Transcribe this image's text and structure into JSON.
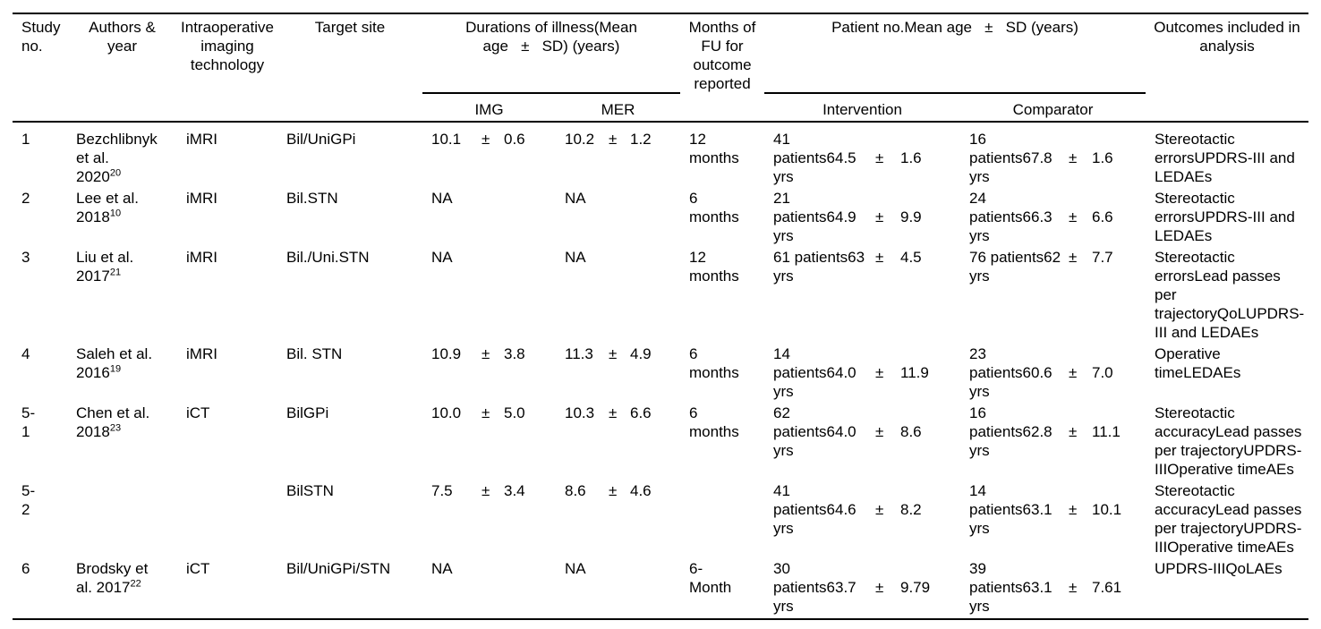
{
  "colors": {
    "background": "#ffffff",
    "text": "#000000",
    "rule": "#000000"
  },
  "table": {
    "header": {
      "study_no": "Study no.",
      "authors_year": "Authors & year",
      "imaging_tech": "Intraoperative imaging technology",
      "target_site": "Target site",
      "durations_line1": "Durations of illness(Mean",
      "durations_line2": "age   ±   SD) (years)",
      "months_fu": "Months of FU for outcome reported",
      "patient_group": "Patient no.Mean age   ±   SD (years)",
      "outcomes": "Outcomes included in analysis",
      "sub_img": "IMG",
      "sub_mer": "MER",
      "sub_intervention": "Intervention",
      "sub_comparator": "Comparator"
    },
    "rows": [
      {
        "no_lines": [
          "1"
        ],
        "authors_lines": [
          "Bezchlibnyk",
          "et al.",
          "2020"
        ],
        "authors_sup": "20",
        "tech": "iMRI",
        "target": "Bil/UniGPi",
        "img": [
          {
            "t": "10.1",
            "pm": "±",
            "sd": "0.6"
          }
        ],
        "mer": [
          {
            "t": "10.2",
            "pm": "±",
            "sd": "1.2"
          }
        ],
        "fu_lines": [
          "12",
          "months"
        ],
        "intervention": [
          {
            "t": "41"
          },
          {
            "t": "patients64.5",
            "pm": "±",
            "sd": "1.6"
          },
          {
            "t": "yrs"
          }
        ],
        "comparator": [
          {
            "t": "16"
          },
          {
            "t": "patients67.8",
            "pm": "±",
            "sd": "1.6"
          },
          {
            "t": "yrs"
          }
        ],
        "outcomes_lines": [
          "Stereotactic",
          "errorsUPDRS-III and",
          "LEDAEs"
        ]
      },
      {
        "no_lines": [
          "2"
        ],
        "authors_lines": [
          "Lee et al.",
          "2018"
        ],
        "authors_sup": "10",
        "tech": "iMRI",
        "target": "Bil.STN",
        "img": [
          {
            "t": "NA"
          }
        ],
        "mer": [
          {
            "t": "NA"
          }
        ],
        "fu_lines": [
          "6",
          "months"
        ],
        "intervention": [
          {
            "t": "21"
          },
          {
            "t": "patients64.9",
            "pm": "±",
            "sd": "9.9"
          },
          {
            "t": "yrs"
          }
        ],
        "comparator": [
          {
            "t": "24"
          },
          {
            "t": "patients66.3",
            "pm": "±",
            "sd": "6.6"
          },
          {
            "t": "yrs"
          }
        ],
        "outcomes_lines": [
          "Stereotactic",
          "errorsUPDRS-III and",
          "LEDAEs"
        ]
      },
      {
        "no_lines": [
          "3"
        ],
        "authors_lines": [
          "Liu et al.",
          "2017"
        ],
        "authors_sup": "21",
        "tech": "iMRI",
        "target": "Bil./Uni.STN",
        "img": [
          {
            "t": "NA"
          }
        ],
        "mer": [
          {
            "t": "NA"
          }
        ],
        "fu_lines": [
          "12",
          "months"
        ],
        "intervention": [
          {
            "t": "61 patients63",
            "pm": "±",
            "sd": "4.5"
          },
          {
            "t": "yrs"
          }
        ],
        "comparator": [
          {
            "t": "76 patients62",
            "pm": "±",
            "sd": "7.7"
          },
          {
            "t": "yrs"
          }
        ],
        "outcomes_lines": [
          "Stereotactic",
          "errorsLead passes",
          "per",
          "trajectoryQoLUPDRS-",
          "III and LEDAEs"
        ]
      },
      {
        "no_lines": [
          "4"
        ],
        "authors_lines": [
          "Saleh et al.",
          "2016"
        ],
        "authors_sup": "19",
        "tech": "iMRI",
        "target": "Bil. STN",
        "img": [
          {
            "t": "10.9",
            "pm": "±",
            "sd": "3.8"
          }
        ],
        "mer": [
          {
            "t": "11.3",
            "pm": "±",
            "sd": "4.9"
          }
        ],
        "fu_lines": [
          "6",
          "months"
        ],
        "intervention": [
          {
            "t": "14"
          },
          {
            "t": "patients64.0",
            "pm": "±",
            "sd": "11.9"
          },
          {
            "t": "yrs"
          }
        ],
        "comparator": [
          {
            "t": "23"
          },
          {
            "t": "patients60.6",
            "pm": "±",
            "sd": "7.0"
          },
          {
            "t": "yrs"
          }
        ],
        "outcomes_lines": [
          "Operative",
          "timeLEDAEs"
        ]
      },
      {
        "no_lines": [
          "5-",
          "1"
        ],
        "authors_lines": [
          "Chen et al.",
          "2018"
        ],
        "authors_sup": "23",
        "tech": "iCT",
        "target": "BilGPi",
        "img": [
          {
            "t": "10.0",
            "pm": "±",
            "sd": "5.0"
          }
        ],
        "mer": [
          {
            "t": "10.3",
            "pm": "±",
            "sd": "6.6"
          }
        ],
        "fu_lines": [
          "6",
          "months"
        ],
        "intervention": [
          {
            "t": "62"
          },
          {
            "t": "patients64.0",
            "pm": "±",
            "sd": "8.6"
          },
          {
            "t": "yrs"
          }
        ],
        "comparator": [
          {
            "t": "16"
          },
          {
            "t": "patients62.8",
            "pm": "±",
            "sd": "11.1"
          },
          {
            "t": "yrs"
          }
        ],
        "outcomes_lines": [
          "Stereotactic",
          "accuracyLead passes",
          "per trajectoryUPDRS-",
          "IIIOperative timeAEs"
        ]
      },
      {
        "no_lines": [
          "5-",
          "2"
        ],
        "authors_lines": [],
        "authors_sup": "",
        "tech": "",
        "target": "BilSTN",
        "img": [
          {
            "t": "7.5",
            "pm": "±",
            "sd": "3.4"
          }
        ],
        "mer": [
          {
            "t": "8.6",
            "pm": "±",
            "sd": "4.6"
          }
        ],
        "fu_lines": [],
        "intervention": [
          {
            "t": "41"
          },
          {
            "t": "patients64.6",
            "pm": "±",
            "sd": "8.2"
          },
          {
            "t": "yrs"
          }
        ],
        "comparator": [
          {
            "t": "14"
          },
          {
            "t": "patients63.1",
            "pm": "±",
            "sd": "10.1"
          },
          {
            "t": "yrs"
          }
        ],
        "outcomes_lines": [
          "Stereotactic",
          "accuracyLead passes",
          "per trajectoryUPDRS-",
          "IIIOperative timeAEs"
        ]
      },
      {
        "no_lines": [
          "6"
        ],
        "authors_lines": [
          "Brodsky et",
          "al. 2017"
        ],
        "authors_sup": "22",
        "tech": "iCT",
        "target": "Bil/UniGPi/STN",
        "img": [
          {
            "t": "NA"
          }
        ],
        "mer": [
          {
            "t": "NA"
          }
        ],
        "fu_lines": [
          "6-",
          "Month"
        ],
        "intervention": [
          {
            "t": "30"
          },
          {
            "t": "patients63.7",
            "pm": "±",
            "sd": "9.79"
          },
          {
            "t": "yrs"
          }
        ],
        "comparator": [
          {
            "t": "39"
          },
          {
            "t": "patients63.1",
            "pm": "±",
            "sd": "7.61"
          },
          {
            "t": "yrs"
          }
        ],
        "outcomes_lines": [
          "UPDRS-IIIQoLAEs"
        ]
      }
    ]
  }
}
